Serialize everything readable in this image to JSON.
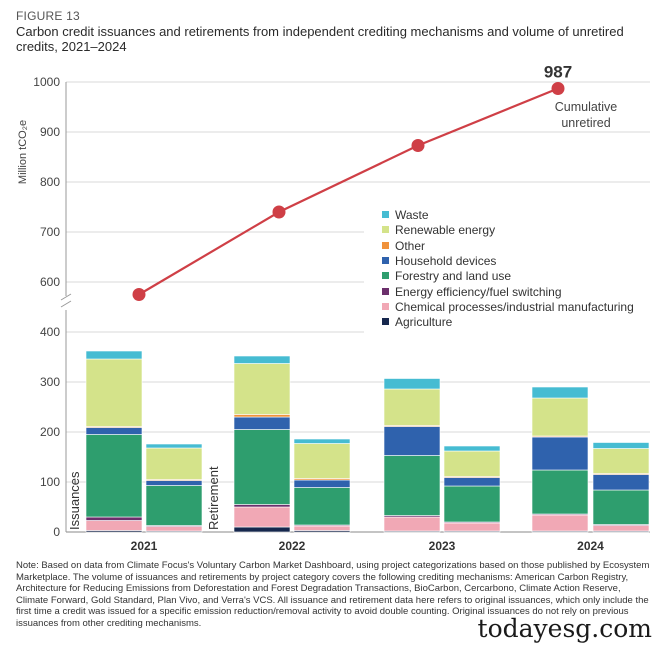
{
  "figure": {
    "label": "FIGURE 13",
    "title": "Carbon credit issuances and retirements from independent crediting mechanisms and volume of unretired credits, 2021–2024"
  },
  "chart_data": {
    "type": "bar",
    "ylabel": "Million tCO₂e",
    "categories": [
      "2021",
      "2022",
      "2023",
      "2024"
    ],
    "bar_labels": {
      "issuances": "Issuances",
      "retirement": "Retirement"
    },
    "ylim_lower": [
      0,
      400
    ],
    "yticks_lower": [
      0,
      100,
      200,
      300,
      400
    ],
    "ylim_upper": [
      600,
      1000
    ],
    "yticks_upper": [
      600,
      700,
      800,
      900,
      1000
    ],
    "segments": [
      {
        "name": "Agriculture",
        "color": "#16274d"
      },
      {
        "name": "Chemical processes/industrial manufacturing",
        "color": "#f1a8b5"
      },
      {
        "name": "Energy efficiency/fuel switching",
        "color": "#6b2f6b"
      },
      {
        "name": "Forestry and land use",
        "color": "#2e9e6e"
      },
      {
        "name": "Household devices",
        "color": "#2f62ad"
      },
      {
        "name": "Other",
        "color": "#f0923b"
      },
      {
        "name": "Renewable energy",
        "color": "#d4e38a"
      },
      {
        "name": "Waste",
        "color": "#46bcd2"
      }
    ],
    "issuances": [
      [
        3,
        20,
        7,
        165,
        14,
        2,
        135,
        16
      ],
      [
        10,
        40,
        5,
        150,
        25,
        5,
        102,
        15
      ],
      [
        2,
        28,
        3,
        120,
        58,
        2,
        73,
        21
      ],
      [
        2,
        32,
        2,
        88,
        66,
        2,
        76,
        22
      ]
    ],
    "retirements": [
      [
        2,
        9,
        2,
        80,
        10,
        2,
        63,
        8
      ],
      [
        3,
        9,
        2,
        75,
        15,
        3,
        70,
        9
      ],
      [
        2,
        16,
        2,
        72,
        17,
        2,
        51,
        10
      ],
      [
        2,
        11,
        2,
        69,
        31,
        2,
        50,
        12
      ]
    ],
    "line": {
      "name": "Cumulative unretired",
      "values": [
        575,
        740,
        873,
        987
      ],
      "label_value": "987",
      "label_text": "Cumulative unretired",
      "color": "#cf3f46"
    }
  },
  "legend": {
    "items": [
      {
        "label": "Waste",
        "color": "#46bcd2"
      },
      {
        "label": "Renewable energy",
        "color": "#d4e38a"
      },
      {
        "label": "Other",
        "color": "#f0923b"
      },
      {
        "label": "Household devices",
        "color": "#2f62ad"
      },
      {
        "label": "Forestry and land use",
        "color": "#2e9e6e"
      },
      {
        "label": "Energy efficiency/fuel switching",
        "color": "#6b2f6b"
      },
      {
        "label": "Chemical processes/industrial manufacturing",
        "color": "#f1a8b5"
      },
      {
        "label": "Agriculture",
        "color": "#16274d"
      }
    ]
  },
  "note": "Note: Based on data from Climate Focus's Voluntary Carbon Market Dashboard, using project categorizations based on those published by Ecosystem Marketplace. The volume of issuances and retirements by project category covers the following crediting mechanisms: American Carbon Registry, Architecture for Reducing Emissions from Deforestation and Forest Degradation Transactions, BioCarbon, Cercarbono, Climate Action Reserve, Climate Forward, Gold Standard, Plan Vivo, and Verra's VCS. All issuance and retirement data here refers to original issuances, which only include the first time a credit was issued for a specific emission reduction/removal activity to avoid double counting. Original issuances do not rely on previous issuances from other crediting mechanisms.",
  "watermark": "todayesg.com"
}
